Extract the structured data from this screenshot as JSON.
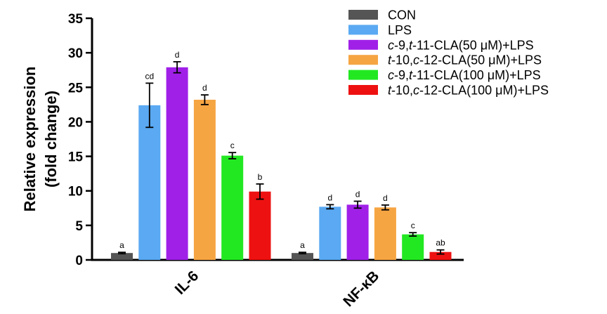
{
  "chart_data": {
    "type": "bar",
    "title": "",
    "xlabel": "",
    "ylabel_lines": [
      "Relative expression",
      "(fold change)"
    ],
    "categories": [
      "IL-6",
      "NF-κB"
    ],
    "ylim": [
      0,
      35
    ],
    "yticks": [
      0,
      5,
      10,
      15,
      20,
      25,
      30,
      35
    ],
    "grid": false,
    "legend_position": "top-right",
    "series": [
      {
        "name": "CON",
        "legend": [
          {
            "t": "CON",
            "i": false
          }
        ],
        "color": "#555555",
        "values": [
          1.0,
          1.0
        ],
        "errors": [
          0.1,
          0.1
        ],
        "labels": [
          "a",
          "a"
        ]
      },
      {
        "name": "LPS",
        "legend": [
          {
            "t": "LPS",
            "i": false
          }
        ],
        "color": "#5aa9f2",
        "values": [
          22.4,
          7.7
        ],
        "errors": [
          3.2,
          0.3
        ],
        "labels": [
          "cd",
          "d"
        ]
      },
      {
        "name": "c-9,t-11-CLA(50 μM)+LPS",
        "legend": [
          {
            "t": "c",
            "i": true
          },
          {
            "t": "-9,",
            "i": false
          },
          {
            "t": "t",
            "i": true
          },
          {
            "t": "-11-CLA(50 μM)+LPS",
            "i": false
          }
        ],
        "color": "#a020e8",
        "values": [
          27.9,
          8.0
        ],
        "errors": [
          0.8,
          0.5
        ],
        "labels": [
          "d",
          "d"
        ]
      },
      {
        "name": "t-10,c-12-CLA(50 μM)+LPS",
        "legend": [
          {
            "t": "t",
            "i": true
          },
          {
            "t": "-10,",
            "i": false
          },
          {
            "t": "c",
            "i": true
          },
          {
            "t": "-12-CLA(50 μM)+LPS",
            "i": false
          }
        ],
        "color": "#f6a543",
        "values": [
          23.2,
          7.6
        ],
        "errors": [
          0.7,
          0.35
        ],
        "labels": [
          "d",
          "d"
        ]
      },
      {
        "name": "c-9,t-11-CLA(100 μM)+LPS",
        "legend": [
          {
            "t": "c",
            "i": true
          },
          {
            "t": "-9,",
            "i": false
          },
          {
            "t": "t",
            "i": true
          },
          {
            "t": "-11-CLA(100 μM)+LPS",
            "i": false
          }
        ],
        "color": "#22e822",
        "values": [
          15.1,
          3.7
        ],
        "errors": [
          0.45,
          0.25
        ],
        "labels": [
          "c",
          "c"
        ]
      },
      {
        "name": "t-10,c-12-CLA(100 μM)+LPS",
        "legend": [
          {
            "t": "t",
            "i": true
          },
          {
            "t": "-10,",
            "i": false
          },
          {
            "t": "c",
            "i": true
          },
          {
            "t": "-12-CLA(100 μM)+LPS",
            "i": false
          }
        ],
        "color": "#ee1111",
        "values": [
          9.9,
          1.15
        ],
        "errors": [
          1.1,
          0.3
        ],
        "labels": [
          "b",
          "ab"
        ]
      }
    ]
  }
}
